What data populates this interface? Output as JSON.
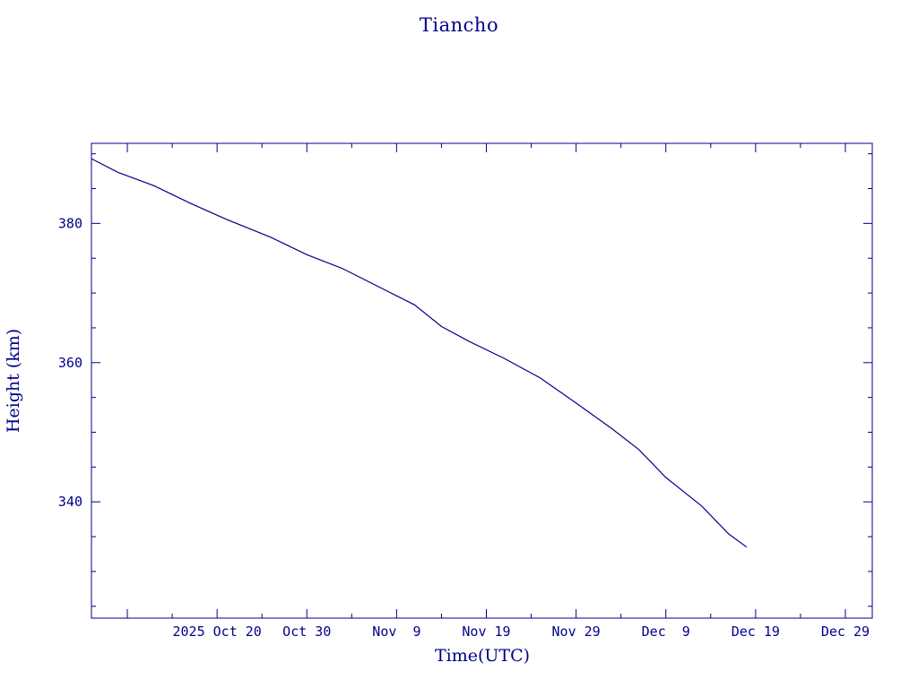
{
  "chart_data": {
    "type": "line",
    "title": "Tiancho",
    "xlabel": "Time(UTC)",
    "ylabel": "Height (km)",
    "xlim": [
      "2025-10-06",
      "2026-01-01"
    ],
    "ylim": [
      323.3,
      391.5
    ],
    "y_ticks": [
      340,
      360,
      380
    ],
    "x_ticks": [
      {
        "date": "2025-10-20",
        "label": "2025 Oct 20"
      },
      {
        "date": "2025-10-30",
        "label": "Oct 30"
      },
      {
        "date": "2025-11-09",
        "label": "Nov  9"
      },
      {
        "date": "2025-11-19",
        "label": "Nov 19"
      },
      {
        "date": "2025-11-29",
        "label": "Nov 29"
      },
      {
        "date": "2025-12-09",
        "label": "Dec  9"
      },
      {
        "date": "2025-12-19",
        "label": "Dec 19"
      },
      {
        "date": "2025-12-29",
        "label": "Dec 29"
      }
    ],
    "series": [
      {
        "color": "#00008b",
        "points": [
          [
            "2025-10-06",
            389.3
          ],
          [
            "2025-10-09",
            387.3
          ],
          [
            "2025-10-13",
            385.4
          ],
          [
            "2025-10-17",
            382.9
          ],
          [
            "2025-10-21",
            380.6
          ],
          [
            "2025-10-26",
            378.0
          ],
          [
            "2025-10-30",
            375.5
          ],
          [
            "2025-11-03",
            373.5
          ],
          [
            "2025-11-07",
            370.9
          ],
          [
            "2025-11-11",
            368.3
          ],
          [
            "2025-11-14",
            365.2
          ],
          [
            "2025-11-17",
            363.1
          ],
          [
            "2025-11-21",
            360.6
          ],
          [
            "2025-11-25",
            357.8
          ],
          [
            "2025-11-29",
            354.2
          ],
          [
            "2025-12-03",
            350.5
          ],
          [
            "2025-12-06",
            347.5
          ],
          [
            "2025-12-09",
            343.5
          ],
          [
            "2025-12-13",
            339.4
          ],
          [
            "2025-12-16",
            335.4
          ],
          [
            "2025-12-18",
            333.5
          ]
        ]
      }
    ],
    "grid": false,
    "legend": "none"
  }
}
